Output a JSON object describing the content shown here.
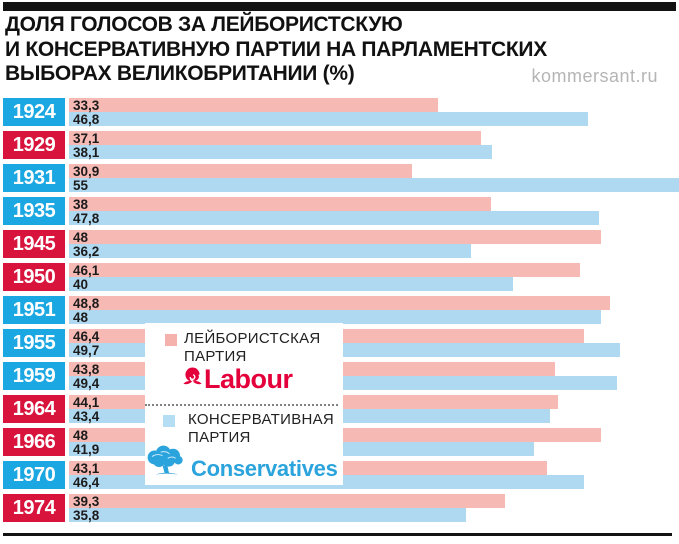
{
  "header": {
    "title_lines": [
      "ДОЛЯ ГОЛОСОВ ЗА ЛЕЙБОРИСТСКУЮ",
      "И КОНСЕРВАТИВНУЮ ПАРТИИ НА ПАРЛАМЕНТСКИХ",
      "ВЫБОРАХ ВЕЛИКОБРИТАНИИ (%)"
    ],
    "watermark": "kommersant.ru"
  },
  "legend": {
    "labour": {
      "label_line1": "ЛЕЙБОРИСТСКАЯ",
      "label_line2": "ПАРТИЯ",
      "logo_text": "Labour",
      "swatch_color": "#f5b1ab",
      "logo_color": "#e4003b",
      "logo_icon": "rose-icon"
    },
    "conservative": {
      "label_line1": "КОНСЕРВАТИВНАЯ",
      "label_line2": "ПАРТИЯ",
      "logo_text": "Conservatives",
      "swatch_color": "#b5ddf4",
      "logo_color": "#2ba3dc",
      "logo_icon": "tree-icon"
    }
  },
  "colors": {
    "labour_bar": "#f7b9b3",
    "conservative_bar": "#afd8f1",
    "badge_labour_win": "#d8133c",
    "badge_conservative_win": "#1ba7e1",
    "accent_rule": "#121212",
    "watermark_gray": "#b5b5b5",
    "value_text": "#1b1b1b"
  },
  "chart_data": {
    "type": "bar",
    "orientation": "horizontal",
    "title": "Доля голосов за лейбористскую и консервативную партии на парламентских выборах Великобритании (%)",
    "categories": [
      "1924",
      "1929",
      "1931",
      "1935",
      "1945",
      "1950",
      "1951",
      "1955",
      "1959",
      "1964",
      "1966",
      "1970",
      "1974"
    ],
    "series": [
      {
        "name": "Лейбористская партия (Labour)",
        "color": "#f7b9b3",
        "values": [
          33.3,
          37.1,
          30.9,
          38,
          48,
          46.1,
          48.8,
          46.4,
          43.8,
          44.1,
          48,
          43.1,
          39.3
        ],
        "labels": [
          "33,3",
          "37,1",
          "30,9",
          "38",
          "48",
          "46,1",
          "48,8",
          "46,4",
          "43,8",
          "44,1",
          "48",
          "43,1",
          "39,3"
        ]
      },
      {
        "name": "Консервативная партия (Conservatives)",
        "color": "#afd8f1",
        "values": [
          46.8,
          38.1,
          55,
          47.8,
          36.2,
          40,
          48,
          49.7,
          49.4,
          43.4,
          41.9,
          46.4,
          35.8
        ],
        "labels": [
          "46,8",
          "38,1",
          "55",
          "47,8",
          "36,2",
          "40",
          "48",
          "49,7",
          "49,4",
          "43,4",
          "41,9",
          "46,4",
          "35,8"
        ]
      }
    ],
    "year_badge_winner": [
      "conservative",
      "labour",
      "conservative",
      "conservative",
      "labour",
      "labour",
      "conservative",
      "conservative",
      "conservative",
      "labour",
      "labour",
      "conservative",
      "labour"
    ],
    "xlim": [
      0,
      55
    ],
    "grid": false,
    "value_labels_position": "inside-left",
    "legend_position": "overlay-center-right"
  }
}
